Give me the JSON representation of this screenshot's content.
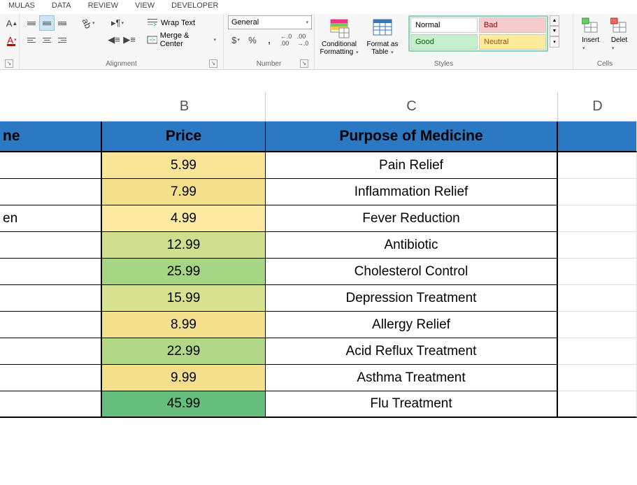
{
  "tabs": {
    "formulas": "MULAS",
    "data": "DATA",
    "review": "REVIEW",
    "view": "VIEW",
    "developer": "DEVELOPER"
  },
  "ribbon": {
    "alignment": {
      "label": "Alignment",
      "wrap": "Wrap Text",
      "merge": "Merge & Center"
    },
    "number": {
      "label": "Number",
      "format": "General"
    },
    "styles": {
      "label": "Styles",
      "conditional": "Conditional Formatting",
      "conditional_l1": "Conditional",
      "conditional_l2": "Formatting",
      "format_table": "Format as Table",
      "ft_l1": "Format as",
      "ft_l2": "Table",
      "normal": "Normal",
      "bad": "Bad",
      "good": "Good",
      "neutral": "Neutral"
    },
    "cells": {
      "label": "Cells",
      "insert": "Insert",
      "delete": "Delete",
      "delete_trunc": "Delet"
    }
  },
  "columns": {
    "B": "B",
    "C": "C",
    "D": "D"
  },
  "header": {
    "a": "ne",
    "b": "Price",
    "c": "Purpose of Medicine"
  },
  "rows": [
    {
      "a": "",
      "b": "5.99",
      "c": "Pain Relief",
      "cls": "p-y1"
    },
    {
      "a": "",
      "b": "7.99",
      "c": "Inflammation Relief",
      "cls": "p-y2"
    },
    {
      "a": "en",
      "b": "4.99",
      "c": "Fever Reduction",
      "cls": "p-y3"
    },
    {
      "a": "",
      "b": "12.99",
      "c": "Antibiotic",
      "cls": "p-g1"
    },
    {
      "a": "",
      "b": "25.99",
      "c": "Cholesterol Control",
      "cls": "p-g2"
    },
    {
      "a": "",
      "b": "15.99",
      "c": "Depression Treatment",
      "cls": "p-g3"
    },
    {
      "a": "",
      "b": "8.99",
      "c": "Allergy Relief",
      "cls": "p-y2"
    },
    {
      "a": "",
      "b": "22.99",
      "c": "Acid Reflux Treatment",
      "cls": "p-g4"
    },
    {
      "a": "",
      "b": "9.99",
      "c": "Asthma Treatment",
      "cls": "p-y2"
    },
    {
      "a": "",
      "b": "45.99",
      "c": "Flu Treatment",
      "cls": "p-g5"
    }
  ]
}
